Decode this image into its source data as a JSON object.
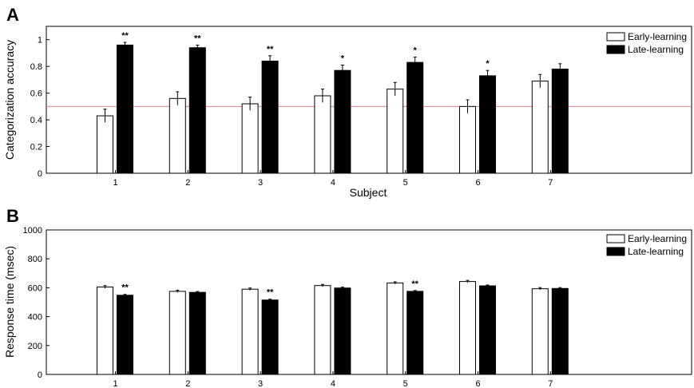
{
  "chart_data": [
    {
      "panel": "A",
      "type": "bar",
      "categories": [
        "1",
        "2",
        "3",
        "4",
        "5",
        "6",
        "7"
      ],
      "xlabel": "Subject",
      "ylabel": "Categorization accuracy",
      "ylim": [
        0,
        1.1
      ],
      "yticks": [
        "0",
        "0.2",
        "0.4",
        "0.6",
        "0.8",
        "1"
      ],
      "series": [
        {
          "name": "Early-learning",
          "values": [
            0.43,
            0.56,
            0.52,
            0.58,
            0.63,
            0.5,
            0.69
          ],
          "errors": [
            0.05,
            0.05,
            0.05,
            0.05,
            0.05,
            0.05,
            0.05
          ],
          "fill": "#ffffff"
        },
        {
          "name": "Late-learning",
          "values": [
            0.96,
            0.94,
            0.84,
            0.77,
            0.83,
            0.73,
            0.78
          ],
          "errors": [
            0.02,
            0.02,
            0.04,
            0.04,
            0.04,
            0.04,
            0.04
          ],
          "fill": "#000000"
        }
      ],
      "significance": [
        "**",
        "**",
        "**",
        "*",
        "*",
        "*",
        ""
      ],
      "reference_line": {
        "y": 0.5,
        "color": "#f08080"
      },
      "legend": "top-right"
    },
    {
      "panel": "B",
      "type": "bar",
      "categories": [
        "1",
        "2",
        "3",
        "4",
        "5",
        "6",
        "7"
      ],
      "xlabel": "",
      "ylabel": "Response time (msec)",
      "ylim": [
        0,
        1000
      ],
      "yticks": [
        "0",
        "200",
        "400",
        "600",
        "800",
        "1000"
      ],
      "series": [
        {
          "name": "Early-learning",
          "values": [
            605,
            575,
            590,
            615,
            633,
            643,
            593
          ],
          "errors": [
            10,
            8,
            8,
            8,
            8,
            8,
            8
          ],
          "fill": "#ffffff"
        },
        {
          "name": "Late-learning",
          "values": [
            548,
            568,
            515,
            598,
            575,
            613,
            595
          ],
          "errors": [
            6,
            6,
            6,
            6,
            6,
            6,
            6
          ],
          "fill": "#000000"
        }
      ],
      "significance": [
        "**",
        "",
        "**",
        "",
        "**",
        "",
        ""
      ],
      "legend": "top-right"
    }
  ]
}
